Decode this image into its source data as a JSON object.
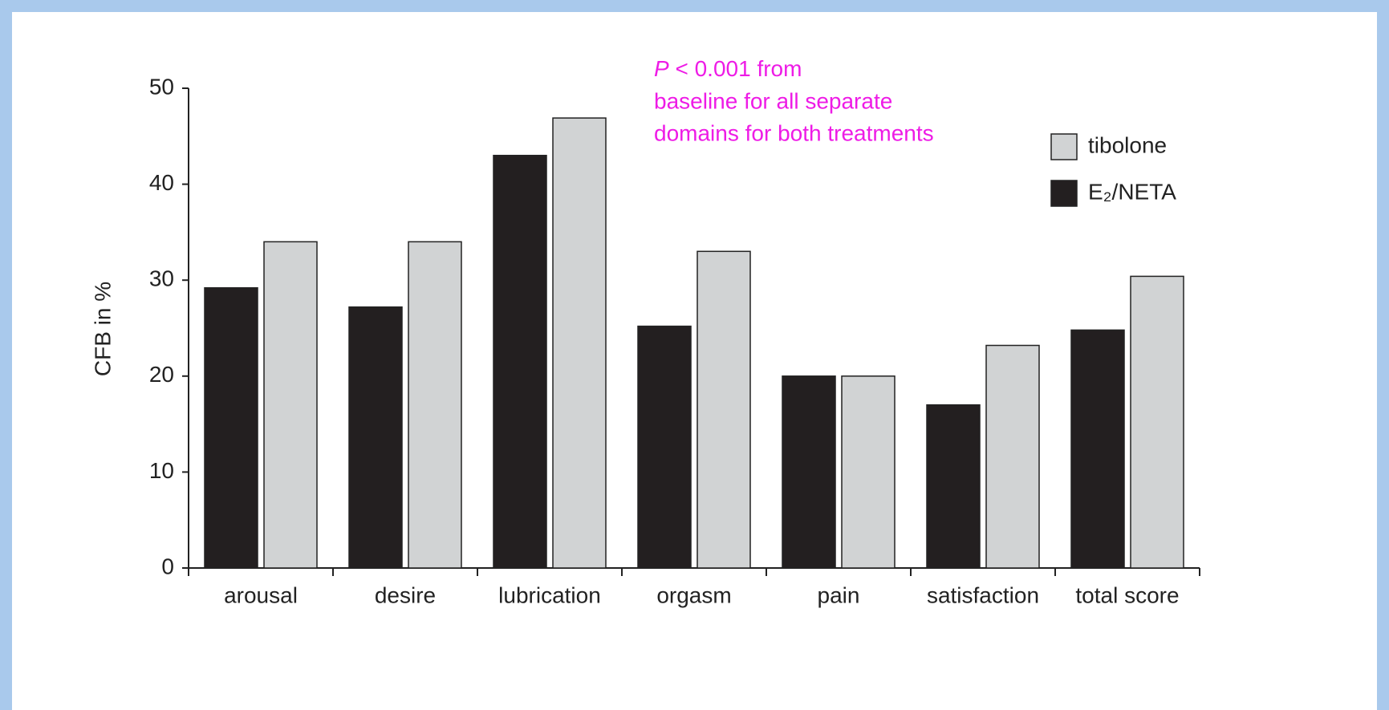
{
  "chart_data": {
    "type": "bar",
    "ylabel": "CFB in %",
    "annotation": [
      "P < 0.001 from",
      "baseline for all separate",
      "domains for both treatments"
    ],
    "annotation_color": "#ee1be6",
    "categories": [
      "arousal",
      "desire",
      "lubrication",
      "orgasm",
      "pain",
      "satisfaction",
      "total score"
    ],
    "series": [
      {
        "name": "E₂/NETA",
        "color": "#231f20",
        "values": [
          29.2,
          27.2,
          43,
          25.2,
          20,
          17,
          24.8
        ]
      },
      {
        "name": "tibolone",
        "color": "#d1d3d4",
        "values": [
          34,
          34,
          46.9,
          33,
          20,
          23.2,
          30.4
        ]
      }
    ],
    "legend_order": [
      1,
      0
    ],
    "legend": "upper right",
    "ylim": [
      0,
      50
    ],
    "yticks": [
      0,
      10,
      20,
      30,
      40,
      50
    ],
    "grid": false
  }
}
